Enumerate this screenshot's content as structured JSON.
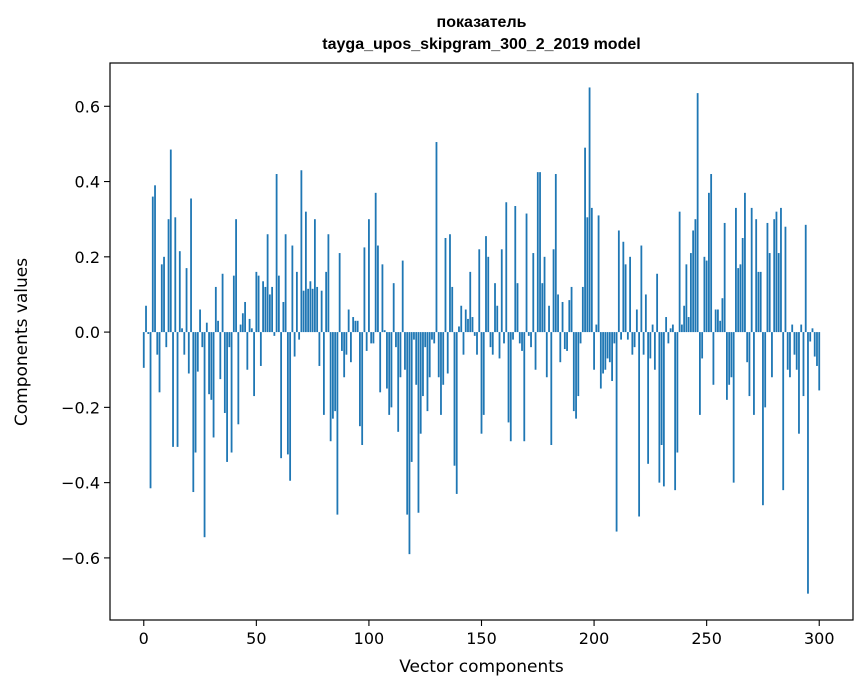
{
  "chart_data": {
    "type": "bar",
    "title_line1": "показатель",
    "title_line2": "tayga_upos_skipgram_300_2_2019 model",
    "xlabel": "Vector components",
    "ylabel": "Components values",
    "xlim": [
      -15,
      315
    ],
    "ylim": [
      -0.765,
      0.715
    ],
    "xticks": [
      0,
      50,
      100,
      150,
      200,
      250,
      300
    ],
    "xtick_labels": [
      "0",
      "50",
      "100",
      "150",
      "200",
      "250",
      "300"
    ],
    "yticks": [
      -0.6,
      -0.4,
      -0.2,
      0.0,
      0.2,
      0.4,
      0.6
    ],
    "ytick_labels": [
      "−0.6",
      "−0.4",
      "−0.2",
      "0.0",
      "0.2",
      "0.4",
      "0.6"
    ],
    "bar_color": "#1f77b4",
    "bar_width": 0.8,
    "values": [
      -0.095,
      0.07,
      -0.005,
      -0.415,
      0.36,
      0.39,
      -0.06,
      -0.16,
      0.18,
      0.2,
      -0.04,
      0.3,
      0.485,
      -0.305,
      0.305,
      -0.305,
      0.215,
      0.01,
      -0.06,
      0.17,
      -0.11,
      0.355,
      -0.425,
      -0.32,
      -0.105,
      0.06,
      -0.04,
      -0.545,
      0.025,
      -0.165,
      -0.18,
      -0.28,
      0.12,
      0.03,
      -0.125,
      0.155,
      -0.215,
      -0.345,
      -0.04,
      -0.32,
      0.15,
      0.3,
      -0.245,
      0.02,
      0.05,
      0.08,
      -0.1,
      0.035,
      0.01,
      -0.17,
      0.16,
      0.15,
      -0.09,
      0.135,
      0.12,
      0.26,
      0.1,
      0.12,
      -0.01,
      0.42,
      0.15,
      -0.335,
      0.08,
      0.26,
      -0.325,
      -0.395,
      0.23,
      -0.065,
      0.16,
      -0.02,
      0.43,
      0.11,
      0.32,
      0.115,
      0.135,
      0.115,
      0.3,
      0.12,
      -0.09,
      0.11,
      -0.22,
      0.16,
      0.26,
      -0.29,
      -0.23,
      -0.21,
      -0.485,
      0.21,
      -0.05,
      -0.12,
      -0.06,
      0.06,
      -0.08,
      0.04,
      0.03,
      0.03,
      -0.25,
      -0.3,
      0.225,
      -0.05,
      0.3,
      -0.03,
      -0.03,
      0.37,
      0.23,
      -0.16,
      0.18,
      0.005,
      -0.15,
      -0.22,
      -0.2,
      0.13,
      -0.04,
      -0.265,
      -0.12,
      0.19,
      -0.1,
      -0.485,
      -0.59,
      -0.345,
      -0.02,
      -0.14,
      -0.48,
      -0.27,
      -0.17,
      -0.04,
      -0.21,
      -0.12,
      -0.02,
      -0.03,
      0.505,
      -0.12,
      -0.22,
      -0.14,
      0.25,
      -0.11,
      0.26,
      0.12,
      -0.355,
      -0.43,
      0.015,
      0.07,
      -0.06,
      0.06,
      0.035,
      0.16,
      0.04,
      -0.01,
      -0.06,
      0.22,
      -0.27,
      -0.22,
      0.255,
      0.2,
      -0.04,
      -0.06,
      0.13,
      0.07,
      -0.07,
      0.22,
      -0.03,
      0.345,
      -0.24,
      -0.29,
      -0.02,
      0.335,
      0.13,
      -0.03,
      -0.05,
      -0.29,
      0.315,
      -0.01,
      -0.04,
      0.21,
      -0.1,
      0.425,
      0.425,
      0.13,
      0.2,
      -0.12,
      0.07,
      -0.3,
      0.22,
      0.42,
      0.1,
      -0.08,
      0.08,
      -0.045,
      -0.05,
      0.085,
      0.12,
      -0.21,
      -0.23,
      -0.17,
      -0.03,
      0.12,
      0.49,
      0.305,
      0.65,
      0.33,
      -0.1,
      0.02,
      0.31,
      -0.15,
      -0.11,
      -0.1,
      -0.07,
      -0.08,
      -0.13,
      -0.03,
      -0.53,
      0.27,
      -0.02,
      0.24,
      0.18,
      -0.02,
      0.2,
      -0.06,
      -0.04,
      0.06,
      -0.49,
      0.23,
      -0.06,
      0.1,
      -0.35,
      -0.07,
      0.02,
      -0.1,
      0.155,
      -0.4,
      -0.3,
      -0.41,
      0.04,
      -0.03,
      0.01,
      0.02,
      -0.42,
      -0.32,
      0.32,
      0.02,
      0.07,
      0.18,
      0.04,
      0.21,
      0.27,
      0.3,
      0.635,
      -0.22,
      -0.07,
      0.2,
      0.19,
      0.37,
      0.42,
      -0.14,
      0.06,
      0.06,
      0.03,
      0.09,
      0.29,
      -0.18,
      -0.14,
      -0.12,
      -0.4,
      0.33,
      0.17,
      0.18,
      0.25,
      0.37,
      -0.08,
      -0.17,
      0.33,
      -0.22,
      0.3,
      0.16,
      0.16,
      -0.46,
      -0.2,
      0.29,
      0.21,
      -0.12,
      0.3,
      0.32,
      0.21,
      0.33,
      -0.42,
      0.28,
      -0.1,
      -0.12,
      0.02,
      -0.06,
      -0.1,
      -0.27,
      0.02,
      -0.17,
      0.285,
      -0.695,
      -0.025,
      0.01,
      -0.065,
      -0.09,
      -0.155
    ]
  }
}
